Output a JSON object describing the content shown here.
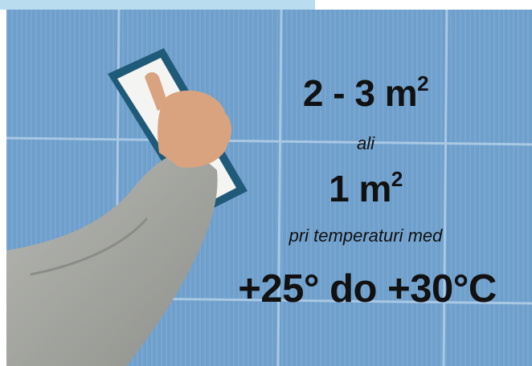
{
  "text": {
    "area_high": "2 - 3 m",
    "area_high_exp": "2",
    "conjunction": "ali",
    "area_low": "1 m",
    "area_low_exp": "2",
    "condition": "pri temperaturi med",
    "temperature_range": "+25° do +30°C"
  },
  "colors": {
    "tile": "#6f9fcb",
    "grout": "#a9c8e4",
    "text": "#111111",
    "sleeve": "#a9aaa5",
    "float_frame": "#1f5a78",
    "float_pad": "#f4f4f2",
    "skin": "#d9a37f"
  }
}
